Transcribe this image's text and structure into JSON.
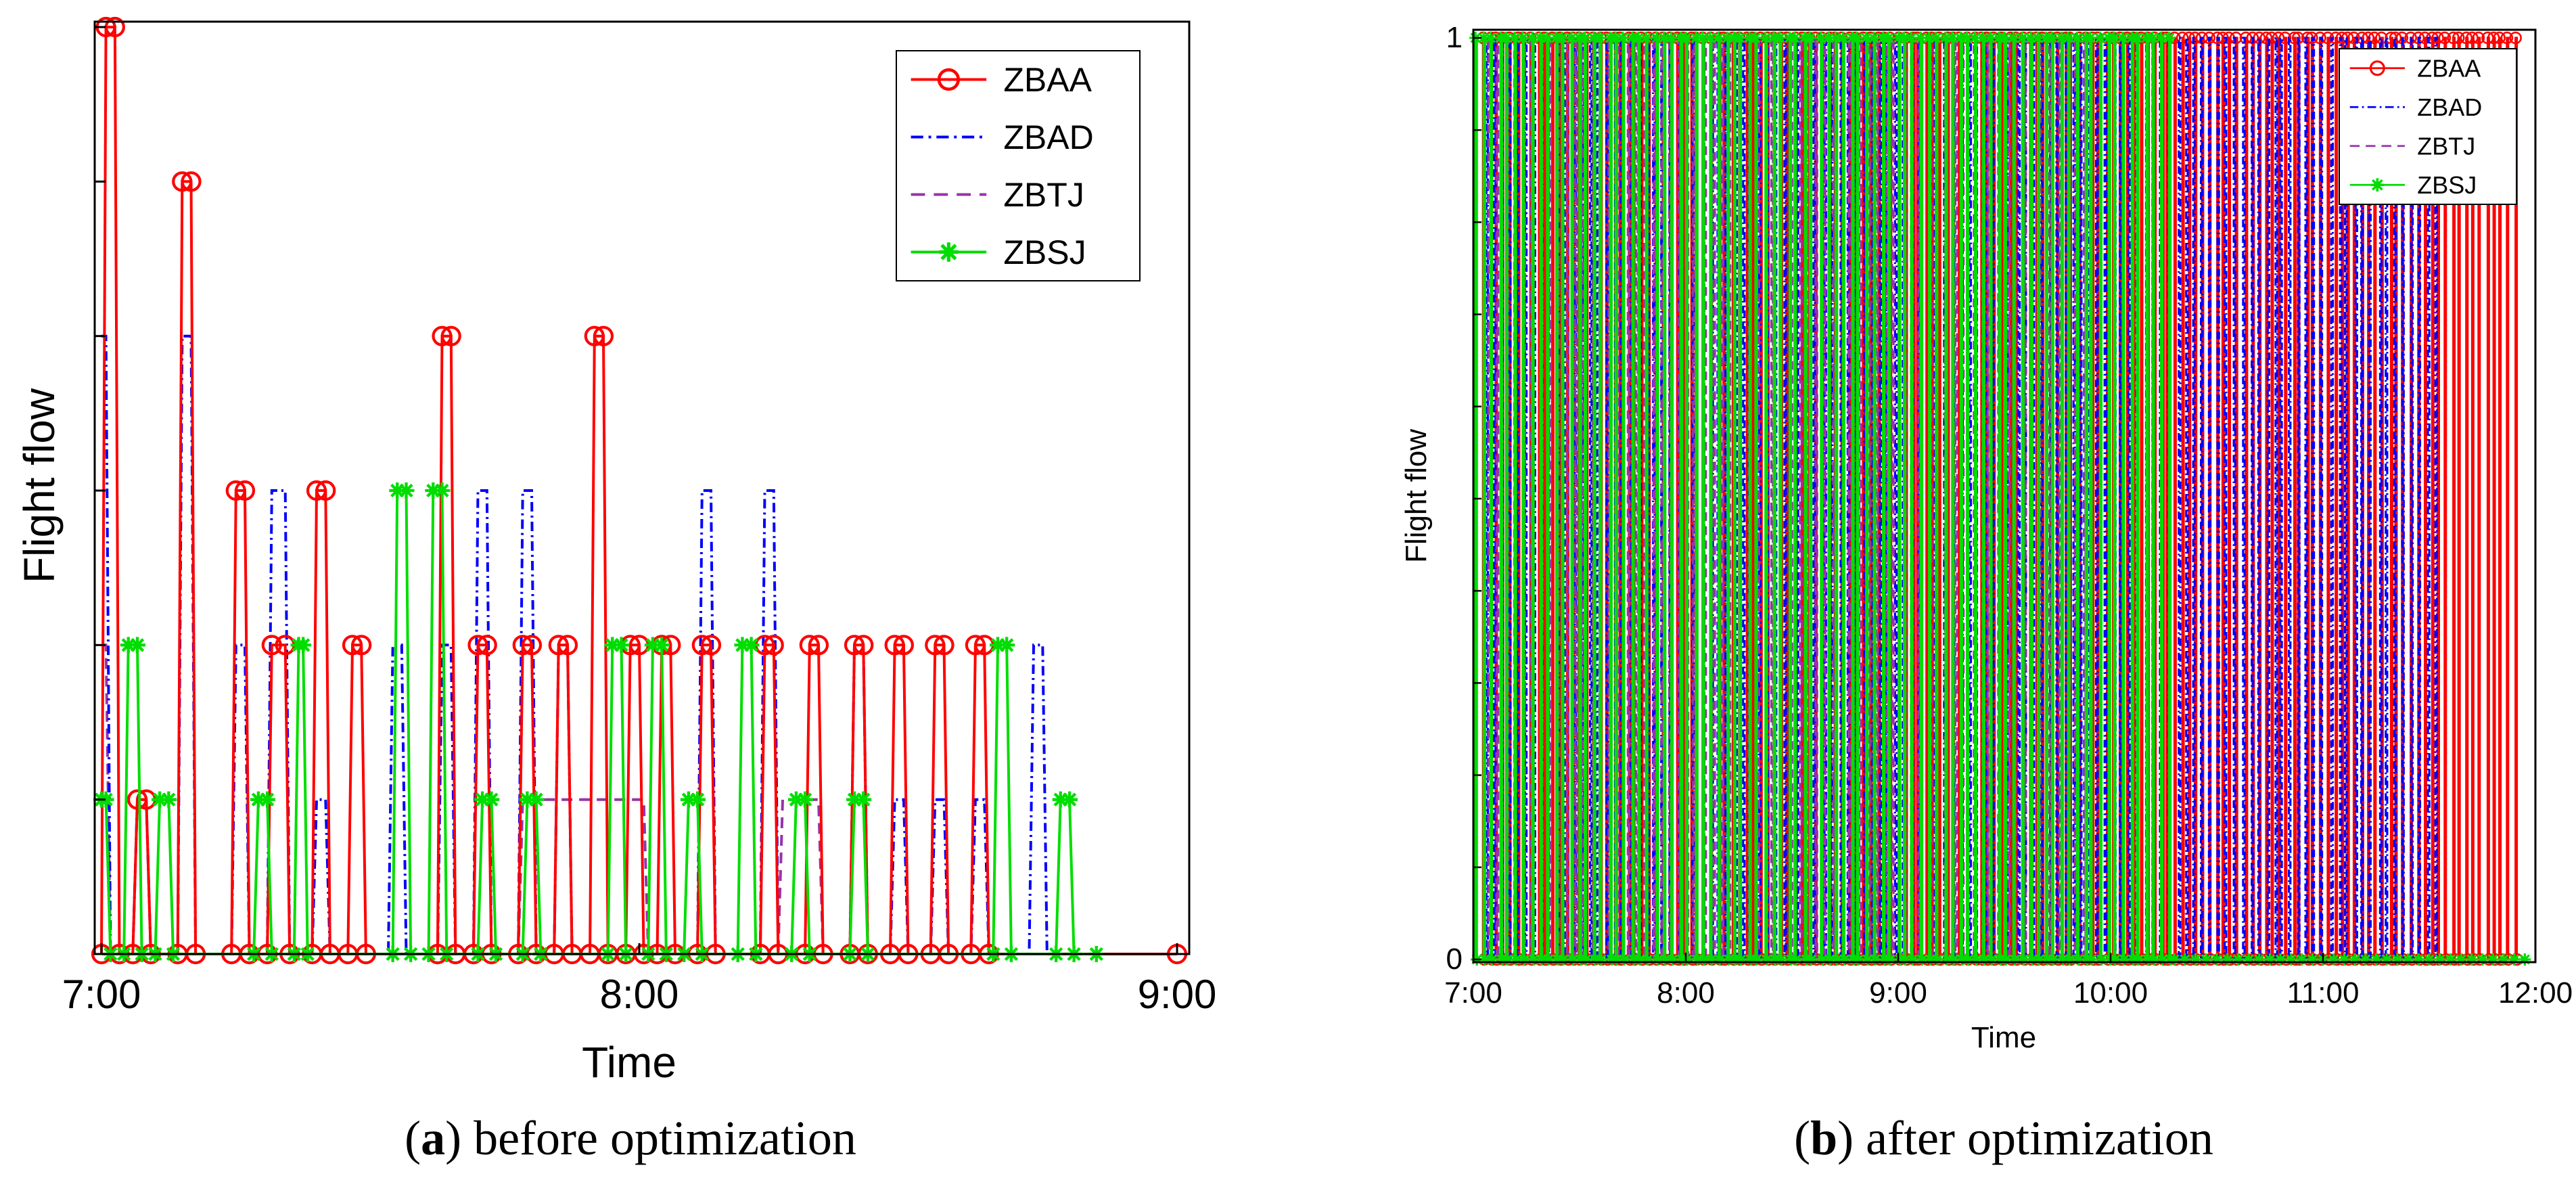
{
  "chart_data": [
    {
      "panel": "a",
      "type": "line",
      "caption_letter": "a",
      "caption_text": " before optimization",
      "xlabel": "Time",
      "ylabel": "Flight flow",
      "xlim_hours": [
        7.0,
        9.0
      ],
      "ylim": [
        0,
        6
      ],
      "x_ticks": [
        "7:00",
        "8:00",
        "9:00"
      ],
      "y_ticks_shown": false,
      "legend_position": "top-right",
      "series": [
        {
          "name": "ZBAA",
          "color": "#ff0000",
          "style": "solid",
          "marker": "circle",
          "points": [
            [
              7.0,
              0
            ],
            [
              7.0083,
              6
            ],
            [
              7.025,
              6
            ],
            [
              7.0333,
              0
            ],
            [
              7.0583,
              0
            ],
            [
              7.0667,
              1
            ],
            [
              7.0833,
              1
            ],
            [
              7.0917,
              0
            ],
            [
              7.1417,
              0
            ],
            [
              7.15,
              5
            ],
            [
              7.1667,
              5
            ],
            [
              7.175,
              0
            ],
            [
              7.2417,
              0
            ],
            [
              7.25,
              3
            ],
            [
              7.2667,
              3
            ],
            [
              7.275,
              0
            ],
            [
              7.3083,
              0
            ],
            [
              7.3167,
              2
            ],
            [
              7.3417,
              2
            ],
            [
              7.35,
              0
            ],
            [
              7.3917,
              0
            ],
            [
              7.4,
              3
            ],
            [
              7.4167,
              3
            ],
            [
              7.425,
              0
            ],
            [
              7.4583,
              0
            ],
            [
              7.4667,
              2
            ],
            [
              7.4833,
              2
            ],
            [
              7.4917,
              0
            ],
            [
              7.625,
              0
            ],
            [
              7.6333,
              4
            ],
            [
              7.65,
              4
            ],
            [
              7.6583,
              0
            ],
            [
              7.6917,
              0
            ],
            [
              7.7,
              2
            ],
            [
              7.7167,
              2
            ],
            [
              7.725,
              0
            ],
            [
              7.775,
              0
            ],
            [
              7.7833,
              2
            ],
            [
              7.8,
              2
            ],
            [
              7.8083,
              0
            ],
            [
              7.8417,
              0
            ],
            [
              7.85,
              2
            ],
            [
              7.8667,
              2
            ],
            [
              7.875,
              0
            ],
            [
              7.9083,
              0
            ],
            [
              7.9167,
              4
            ],
            [
              7.9333,
              4
            ],
            [
              7.9417,
              0
            ],
            [
              7.975,
              0
            ],
            [
              7.9833,
              2
            ],
            [
              8.0,
              2
            ],
            [
              8.0083,
              0
            ],
            [
              8.0333,
              0
            ],
            [
              8.0417,
              2
            ],
            [
              8.0583,
              2
            ],
            [
              8.0667,
              0
            ],
            [
              8.1083,
              0
            ],
            [
              8.1167,
              2
            ],
            [
              8.1333,
              2
            ],
            [
              8.1417,
              0
            ],
            [
              8.225,
              0
            ],
            [
              8.2333,
              2
            ],
            [
              8.25,
              2
            ],
            [
              8.2583,
              0
            ],
            [
              8.3083,
              0
            ],
            [
              8.3167,
              2
            ],
            [
              8.3333,
              2
            ],
            [
              8.3417,
              0
            ],
            [
              8.3917,
              0
            ],
            [
              8.4,
              2
            ],
            [
              8.4167,
              2
            ],
            [
              8.425,
              0
            ],
            [
              8.4667,
              0
            ],
            [
              8.475,
              2
            ],
            [
              8.4917,
              2
            ],
            [
              8.5,
              0
            ],
            [
              8.5417,
              0
            ],
            [
              8.55,
              2
            ],
            [
              8.5667,
              2
            ],
            [
              8.575,
              0
            ],
            [
              8.6167,
              0
            ],
            [
              8.625,
              2
            ],
            [
              8.6417,
              2
            ],
            [
              8.65,
              0
            ],
            [
              9.0,
              0
            ]
          ]
        },
        {
          "name": "ZBAD",
          "color": "#0000ff",
          "style": "dashdot",
          "marker": "none",
          "points": [
            [
              7.0,
              4
            ],
            [
              7.0083,
              4
            ],
            [
              7.0167,
              0
            ],
            [
              7.0583,
              0
            ],
            [
              7.0667,
              1
            ],
            [
              7.0833,
              1
            ],
            [
              7.0917,
              0
            ],
            [
              7.1417,
              0
            ],
            [
              7.15,
              4
            ],
            [
              7.1667,
              4
            ],
            [
              7.175,
              0
            ],
            [
              7.2417,
              0
            ],
            [
              7.25,
              2
            ],
            [
              7.2667,
              2
            ],
            [
              7.275,
              0
            ],
            [
              7.3083,
              0
            ],
            [
              7.3167,
              3
            ],
            [
              7.3417,
              3
            ],
            [
              7.35,
              0
            ],
            [
              7.3917,
              0
            ],
            [
              7.4,
              1
            ],
            [
              7.4167,
              1
            ],
            [
              7.425,
              0
            ],
            [
              7.5333,
              0
            ],
            [
              7.5417,
              2
            ],
            [
              7.5583,
              2
            ],
            [
              7.5667,
              0
            ],
            [
              7.625,
              0
            ],
            [
              7.6333,
              2
            ],
            [
              7.65,
              2
            ],
            [
              7.6583,
              0
            ],
            [
              7.6917,
              0
            ],
            [
              7.7,
              3
            ],
            [
              7.7167,
              3
            ],
            [
              7.725,
              0
            ],
            [
              7.775,
              0
            ],
            [
              7.7833,
              3
            ],
            [
              7.8,
              3
            ],
            [
              7.8083,
              0
            ],
            [
              7.8417,
              0
            ],
            [
              7.85,
              2
            ],
            [
              7.8667,
              2
            ],
            [
              7.875,
              0
            ],
            [
              8.1083,
              0
            ],
            [
              8.1167,
              3
            ],
            [
              8.1333,
              3
            ],
            [
              8.1417,
              0
            ],
            [
              8.225,
              0
            ],
            [
              8.2333,
              3
            ],
            [
              8.25,
              3
            ],
            [
              8.2583,
              0
            ],
            [
              8.3917,
              0
            ],
            [
              8.4,
              2
            ],
            [
              8.4167,
              2
            ],
            [
              8.425,
              0
            ],
            [
              8.4667,
              0
            ],
            [
              8.475,
              1
            ],
            [
              8.4917,
              1
            ],
            [
              8.5,
              0
            ],
            [
              8.5417,
              0
            ],
            [
              8.55,
              1
            ],
            [
              8.5667,
              1
            ],
            [
              8.575,
              0
            ],
            [
              8.6167,
              0
            ],
            [
              8.625,
              1
            ],
            [
              8.6417,
              1
            ],
            [
              8.65,
              0
            ],
            [
              8.725,
              0
            ],
            [
              8.7333,
              2
            ],
            [
              8.75,
              2
            ],
            [
              8.7583,
              0
            ],
            [
              8.85,
              0
            ]
          ]
        },
        {
          "name": "ZBTJ",
          "color": "#9933aa",
          "style": "dashed",
          "marker": "none",
          "points": [
            [
              7.0,
              2
            ],
            [
              7.0083,
              2
            ],
            [
              7.0167,
              0
            ],
            [
              7.775,
              0
            ],
            [
              7.7833,
              1
            ],
            [
              8.0083,
              1
            ],
            [
              8.0167,
              0
            ],
            [
              8.2583,
              0
            ],
            [
              8.2667,
              1
            ],
            [
              8.3333,
              1
            ],
            [
              8.3417,
              0
            ],
            [
              9.0,
              0
            ]
          ]
        },
        {
          "name": "ZBSJ",
          "color": "#00dd00",
          "style": "solid",
          "marker": "asterisk",
          "points": [
            [
              7.0,
              1
            ],
            [
              7.0083,
              1
            ],
            [
              7.0167,
              0
            ],
            [
              7.0417,
              0
            ],
            [
              7.05,
              2
            ],
            [
              7.0667,
              2
            ],
            [
              7.075,
              0
            ],
            [
              7.1,
              0
            ],
            [
              7.1083,
              1
            ],
            [
              7.125,
              1
            ],
            [
              7.1333,
              0
            ],
            [
              7.2833,
              0
            ],
            [
              7.2917,
              1
            ],
            [
              7.3083,
              1
            ],
            [
              7.3167,
              0
            ],
            [
              7.3583,
              0
            ],
            [
              7.3667,
              2
            ],
            [
              7.375,
              2
            ],
            [
              7.3833,
              0
            ],
            [
              7.5417,
              0
            ],
            [
              7.55,
              3
            ],
            [
              7.5667,
              3
            ],
            [
              7.575,
              0
            ],
            [
              7.6083,
              0
            ],
            [
              7.6167,
              3
            ],
            [
              7.6333,
              3
            ],
            [
              7.6417,
              0
            ],
            [
              7.7,
              0
            ],
            [
              7.7083,
              1
            ],
            [
              7.725,
              1
            ],
            [
              7.7333,
              0
            ],
            [
              7.7833,
              0
            ],
            [
              7.7917,
              1
            ],
            [
              7.8083,
              1
            ],
            [
              7.8167,
              0
            ],
            [
              7.9417,
              0
            ],
            [
              7.95,
              2
            ],
            [
              7.9667,
              2
            ],
            [
              7.975,
              0
            ],
            [
              8.0167,
              0
            ],
            [
              8.025,
              2
            ],
            [
              8.0417,
              2
            ],
            [
              8.05,
              0
            ],
            [
              8.0833,
              0
            ],
            [
              8.0917,
              1
            ],
            [
              8.1083,
              1
            ],
            [
              8.1167,
              0
            ],
            [
              8.1833,
              0
            ],
            [
              8.1917,
              2
            ],
            [
              8.2083,
              2
            ],
            [
              8.2167,
              0
            ],
            [
              8.2833,
              0
            ],
            [
              8.2917,
              1
            ],
            [
              8.3083,
              1
            ],
            [
              8.3167,
              0
            ],
            [
              8.3917,
              0
            ],
            [
              8.4,
              1
            ],
            [
              8.4167,
              1
            ],
            [
              8.425,
              0
            ],
            [
              8.6583,
              0
            ],
            [
              8.6667,
              2
            ],
            [
              8.6833,
              2
            ],
            [
              8.6917,
              0
            ],
            [
              8.775,
              0
            ],
            [
              8.7833,
              1
            ],
            [
              8.8,
              1
            ],
            [
              8.8083,
              0
            ],
            [
              8.85,
              0
            ]
          ]
        }
      ]
    },
    {
      "panel": "b",
      "type": "line",
      "caption_letter": "b",
      "caption_text": " after optimization",
      "xlabel": "Time",
      "ylabel": "Flight flow",
      "xlim_hours": [
        7.0,
        12.0
      ],
      "ylim": [
        0,
        1
      ],
      "x_ticks": [
        "7:00",
        "8:00",
        "9:00",
        "10:00",
        "11:00",
        "12:00"
      ],
      "y_ticks": [
        "0",
        "1"
      ],
      "legend_position": "top-right",
      "series": [
        {
          "name": "ZBAA",
          "color": "#ff0000",
          "style": "solid",
          "marker": "circle",
          "x_range": [
            7.03,
            11.92
          ],
          "pulses": 150,
          "seed": 11
        },
        {
          "name": "ZBAD",
          "color": "#0000ff",
          "style": "dashdot",
          "marker": "none",
          "x_range": [
            7.0,
            11.55
          ],
          "pulses": 120,
          "seed": 23
        },
        {
          "name": "ZBTJ",
          "color": "#9933aa",
          "style": "dashed",
          "marker": "none",
          "x_range": [
            7.05,
            9.9
          ],
          "pulses": 70,
          "seed": 37
        },
        {
          "name": "ZBSJ",
          "color": "#00dd00",
          "style": "solid",
          "marker": "asterisk",
          "x_range": [
            7.0,
            10.3
          ],
          "pulses": 90,
          "seed": 51
        }
      ]
    }
  ]
}
